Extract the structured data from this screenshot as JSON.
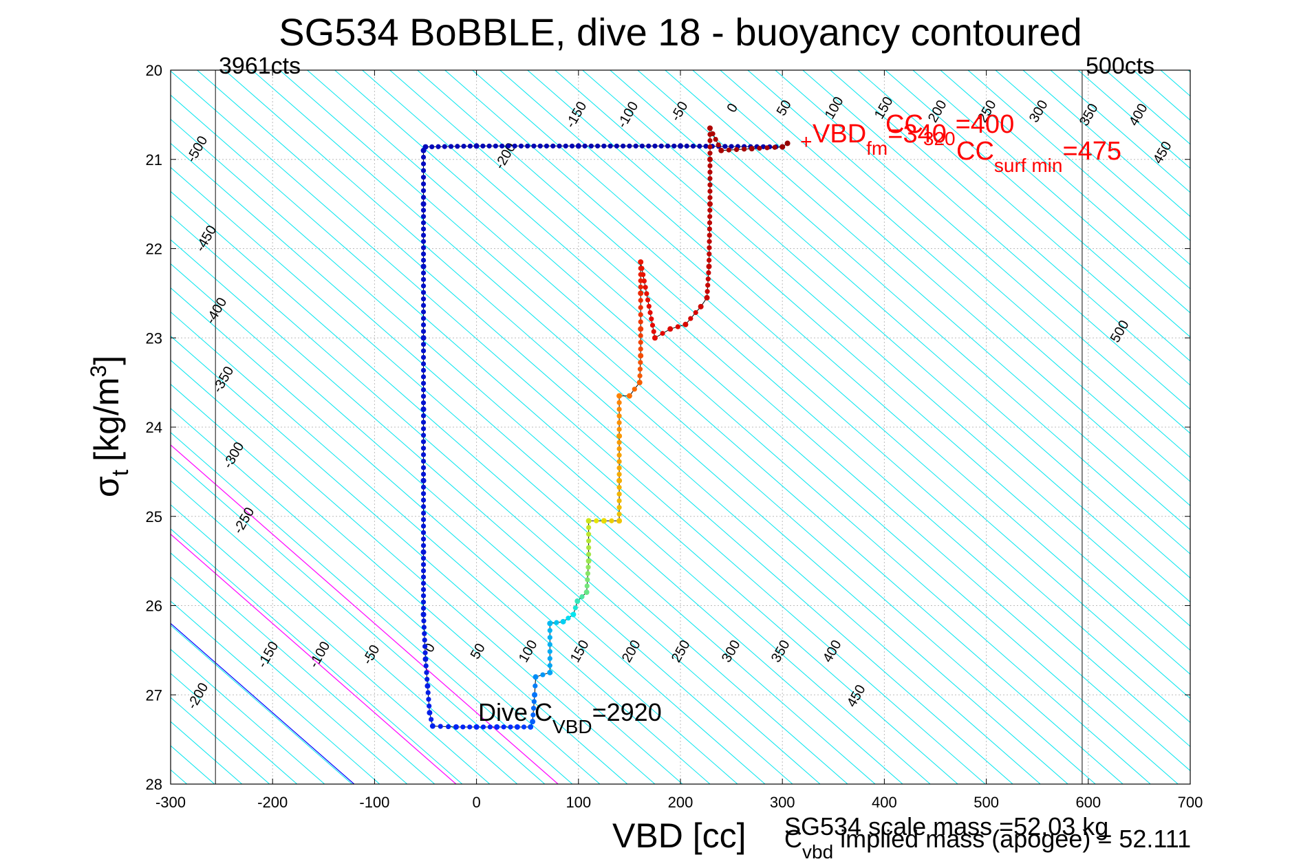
{
  "chart_data": {
    "type": "scatter",
    "title": "SG534 BoBBLE, dive 18 - buoyancy contoured",
    "xlabel": "VBD [cc]",
    "ylabel_main": "σ",
    "ylabel_sub": "t",
    "ylabel_units": "[kg/m",
    "ylabel_sup": "3",
    "ylabel_close": "]",
    "xlim": [
      -300,
      700
    ],
    "ylim": [
      20,
      28
    ],
    "y_reversed": true,
    "grid": true,
    "x_ticks": [
      "-300",
      "-200",
      "-100",
      "0",
      "100",
      "200",
      "300",
      "400",
      "500",
      "600",
      "700"
    ],
    "y_ticks": [
      "20",
      "21",
      "22",
      "23",
      "24",
      "25",
      "26",
      "27",
      "28"
    ],
    "corner_labels": {
      "left": "3961cts",
      "right": "500cts"
    },
    "count_lines_x": [
      -256,
      594
    ],
    "annotations": {
      "dive_c_main": "Dive C",
      "dive_c_sub": "VBD",
      "dive_c_val": "=2920",
      "vbd_main": "VBD",
      "vbd_sub": "fm",
      "vbd_val": "=340",
      "cc_main": "CC",
      "cc_sub": "320",
      "cc_val": "=400",
      "ccsurf_main": "CC",
      "ccsurf_sub": "surf min",
      "ccsurf_val": "=475",
      "marker": "+",
      "scale_mass": "SG534 scale mass =52.03 kg",
      "cvbd_main": "C",
      "cvbd_sub": "vbd",
      "cvbd_rest": " implied mass (apogee) = 52.111"
    },
    "contour_labels_top": [
      "-500",
      "-450",
      "-400",
      "-350",
      "-300",
      "-250",
      "-200",
      "-150",
      "-100",
      "-50",
      "0",
      "50",
      "100",
      "150",
      "200",
      "250",
      "300",
      "350",
      "400",
      "450",
      "500"
    ],
    "contour_labels_bottom": [
      "-200",
      "-150",
      "-100",
      "-50",
      "0",
      "50",
      "100",
      "150",
      "200",
      "250",
      "300",
      "350",
      "400",
      "450"
    ],
    "colors": {
      "contour": "#00e5ee",
      "neutral_line": "#0000ff",
      "magenta_line": "#ff00ff",
      "profile_line": "#000000",
      "annotation_red": "#ff0000"
    },
    "descent": [
      [
        300,
        20.86
      ],
      [
        200,
        20.85
      ],
      [
        100,
        20.85
      ],
      [
        0,
        20.85
      ],
      [
        -50,
        20.86
      ],
      [
        -52,
        20.9
      ],
      [
        -52,
        21.5
      ],
      [
        -52,
        22.2
      ],
      [
        -52,
        23
      ],
      [
        -52,
        23.8
      ],
      [
        -52,
        24.6
      ],
      [
        -52,
        25.4
      ],
      [
        -52,
        26.1
      ],
      [
        -50,
        26.6
      ],
      [
        -48,
        26.9
      ],
      [
        -46,
        27.2
      ],
      [
        -43,
        27.35
      ],
      [
        -20,
        27.36
      ],
      [
        0,
        27.36
      ],
      [
        20,
        27.36
      ],
      [
        40,
        27.36
      ],
      [
        53,
        27.36
      ]
    ],
    "ascent": [
      [
        55,
        27.3
      ],
      [
        57,
        27.0
      ],
      [
        58,
        26.8
      ],
      [
        72,
        26.75
      ],
      [
        72,
        26.2
      ],
      [
        85,
        26.18
      ],
      [
        95,
        26.1
      ],
      [
        99,
        25.95
      ],
      [
        108,
        25.85
      ],
      [
        110,
        25.5
      ],
      [
        110,
        25.05
      ],
      [
        125,
        25.05
      ],
      [
        140,
        25.05
      ],
      [
        140,
        24.6
      ],
      [
        140,
        24.1
      ],
      [
        140,
        23.65
      ],
      [
        150,
        23.65
      ],
      [
        160,
        23.5
      ],
      [
        161,
        23.2
      ],
      [
        161,
        22.9
      ],
      [
        161,
        22.5
      ],
      [
        161,
        22.15
      ],
      [
        175,
        23
      ],
      [
        190,
        22.9
      ],
      [
        205,
        22.85
      ],
      [
        220,
        22.65
      ],
      [
        226,
        22.55
      ],
      [
        228,
        22.2
      ],
      [
        229,
        21.5
      ],
      [
        229,
        21.0
      ],
      [
        229,
        20.65
      ],
      [
        240,
        20.9
      ],
      [
        270,
        20.88
      ],
      [
        300,
        20.86
      ],
      [
        305,
        20.82
      ]
    ]
  }
}
